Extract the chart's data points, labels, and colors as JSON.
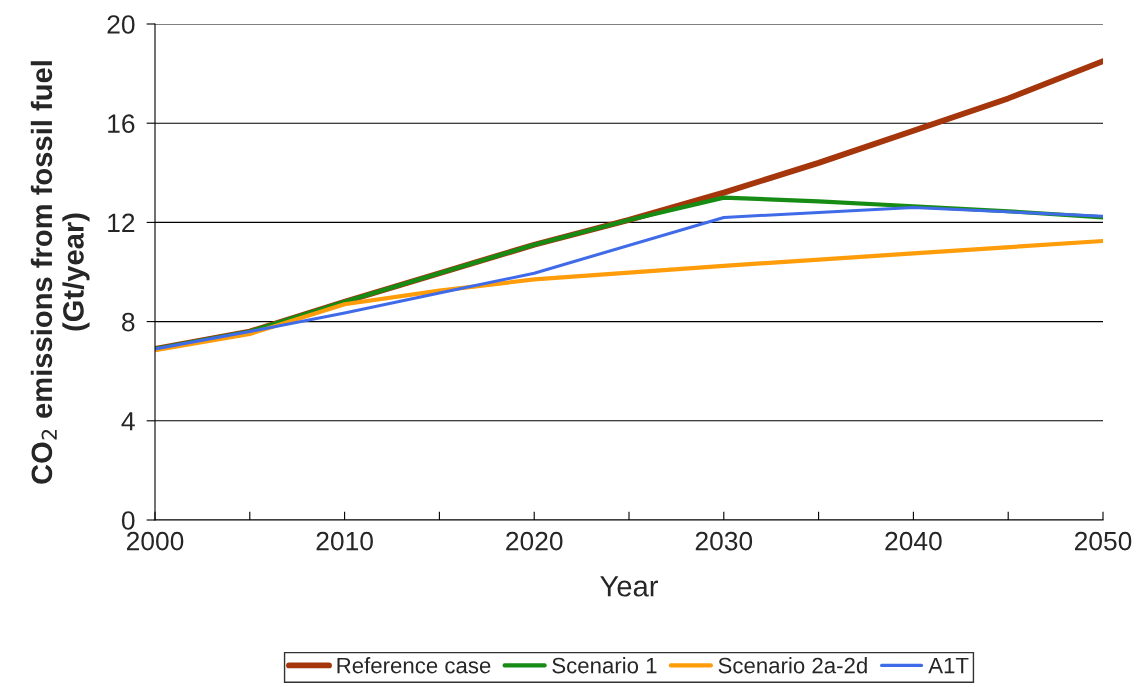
{
  "chart_data": {
    "type": "line",
    "xlabel": "Year",
    "ylabel": "CO$_{2}$ emissions from fossil fuel\n(Gt/year)",
    "xlim": [
      2000,
      2050
    ],
    "xticks": [
      2000,
      {
        "value": 2005,
        "label": null
      },
      2010,
      {
        "value": 2015,
        "label": null
      },
      2020,
      {
        "value": 2025,
        "label": null
      },
      2030,
      {
        "value": 2035,
        "label": null
      },
      2040,
      {
        "value": 2045,
        "label": null
      },
      2050
    ],
    "ylim": [
      0,
      20
    ],
    "yticks": [
      0,
      4,
      8,
      12,
      16,
      20
    ],
    "grid": "y",
    "legend": "bottom",
    "marker": "none",
    "line_style": "solid",
    "series": [
      {
        "name": "Reference case",
        "color": "#a5360c",
        "x": [
          2000,
          2005,
          2010,
          2015,
          2020,
          2025,
          2030,
          2035,
          2040,
          2045,
          2050
        ],
        "values": [
          6.9,
          7.6,
          8.8,
          9.95,
          11.1,
          12.1,
          13.2,
          14.4,
          15.7,
          17.0,
          18.5
        ]
      },
      {
        "name": "Scenario 1",
        "color": "#168c14",
        "x": [
          2000,
          2005,
          2010,
          2015,
          2020,
          2025,
          2030,
          2035,
          2040,
          2045,
          2050
        ],
        "values": [
          6.9,
          7.6,
          8.8,
          9.95,
          11.1,
          12.1,
          13.0,
          12.85,
          12.65,
          12.45,
          12.2
        ]
      },
      {
        "name": "Scenario 2a-2d",
        "color": "#ff9c0a",
        "x": [
          2000,
          2005,
          2010,
          2015,
          2020,
          2030,
          2040,
          2050
        ],
        "values": [
          6.85,
          7.5,
          8.7,
          9.25,
          9.7,
          10.25,
          10.75,
          11.25
        ]
      },
      {
        "name": "A1T",
        "color": "#3f6be8",
        "x": [
          2000,
          2005,
          2010,
          2015,
          2020,
          2030,
          2035,
          2040,
          2050
        ],
        "values": [
          6.9,
          7.6,
          8.35,
          9.15,
          9.95,
          12.2,
          12.4,
          12.6,
          12.25
        ]
      }
    ]
  }
}
